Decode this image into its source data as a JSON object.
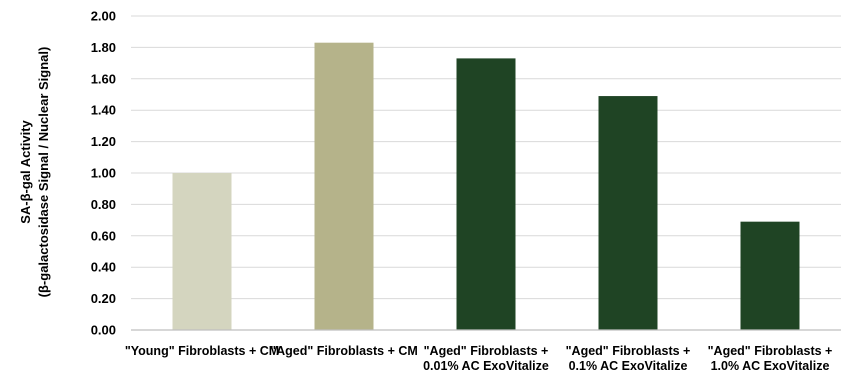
{
  "chart_data": {
    "type": "bar",
    "title": "",
    "xlabel": "",
    "ylabel_lines": [
      "SA-β-gal Activity",
      "(β-galactosidase Signal / Nuclear Signal)"
    ],
    "ylim": [
      0,
      2.0
    ],
    "yticks": [
      "0.00",
      "0.20",
      "0.40",
      "0.60",
      "0.80",
      "1.00",
      "1.20",
      "1.40",
      "1.60",
      "1.80",
      "2.00"
    ],
    "grid": true,
    "categories": [
      [
        "\"Young\" Fibroblasts + CM"
      ],
      [
        "\"Aged\" Fibroblasts + CM"
      ],
      [
        "\"Aged\" Fibroblasts +",
        "0.01% AC ExoVitalize"
      ],
      [
        "\"Aged\" Fibroblasts +",
        "0.1% AC ExoVitalize"
      ],
      [
        "\"Aged\" Fibroblasts +",
        "1.0% AC ExoVitalize"
      ]
    ],
    "values": [
      1.0,
      1.83,
      1.73,
      1.49,
      0.69
    ],
    "colors": [
      "#d4d5bf",
      "#b5b38a",
      "#1f4424",
      "#1f4424",
      "#1f4424"
    ],
    "grid_color": "#d9d9d9",
    "axis_color": "#bfbfbf"
  }
}
